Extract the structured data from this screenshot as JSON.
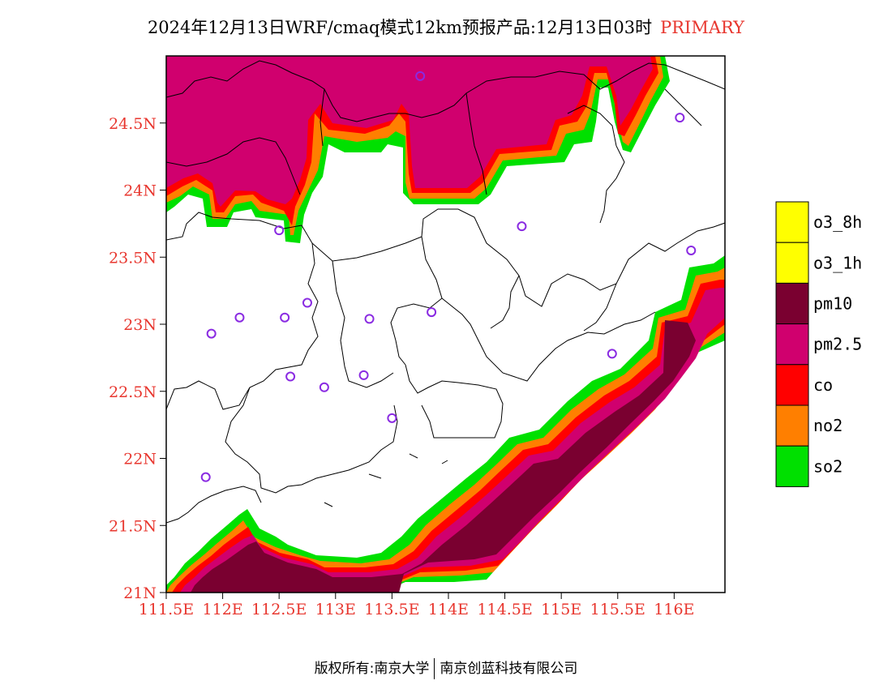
{
  "title": {
    "main": "2024年12月13日WRF/cmaq模式12km预报产品:12月13日03时",
    "tag": "PRIMARY"
  },
  "axes": {
    "lat_labels": [
      "24.5N",
      "24N",
      "23.5N",
      "23N",
      "22.5N",
      "22N",
      "21.5N",
      "21N"
    ],
    "lat_values": [
      24.5,
      24.0,
      23.5,
      23.0,
      22.5,
      22.0,
      21.5,
      21.0
    ],
    "lon_labels": [
      "111.5E",
      "112E",
      "112.5E",
      "113E",
      "113.5E",
      "114E",
      "114.5E",
      "115E",
      "115.5E",
      "116E"
    ],
    "lon_values": [
      111.5,
      112.0,
      112.5,
      113.0,
      113.5,
      114.0,
      114.5,
      115.0,
      115.5,
      116.0
    ]
  },
  "legend": {
    "items": [
      {
        "label": "o3_8h",
        "color": "#ffff00"
      },
      {
        "label": "o3_1h",
        "color": "#ffff00"
      },
      {
        "label": "pm10",
        "color": "#7a0030"
      },
      {
        "label": "pm2.5",
        "color": "#d0006e"
      },
      {
        "label": "co",
        "color": "#ff0000"
      },
      {
        "label": "no2",
        "color": "#ff7f00"
      },
      {
        "label": "so2",
        "color": "#00e000"
      }
    ]
  },
  "stations": [
    {
      "lon": 113.75,
      "lat": 24.85
    },
    {
      "lon": 116.05,
      "lat": 24.54
    },
    {
      "lon": 114.65,
      "lat": 23.73
    },
    {
      "lon": 112.5,
      "lat": 23.7
    },
    {
      "lon": 116.15,
      "lat": 23.55
    },
    {
      "lon": 112.75,
      "lat": 23.16
    },
    {
      "lon": 112.55,
      "lat": 23.05
    },
    {
      "lon": 112.15,
      "lat": 23.05
    },
    {
      "lon": 113.3,
      "lat": 23.04
    },
    {
      "lon": 113.85,
      "lat": 23.09
    },
    {
      "lon": 111.9,
      "lat": 22.93
    },
    {
      "lon": 115.45,
      "lat": 22.78
    },
    {
      "lon": 112.6,
      "lat": 22.61
    },
    {
      "lon": 113.25,
      "lat": 22.62
    },
    {
      "lon": 112.9,
      "lat": 22.53
    },
    {
      "lon": 113.5,
      "lat": 22.3
    },
    {
      "lon": 111.85,
      "lat": 21.86
    }
  ],
  "footer": {
    "left": "版权所有:南京大学",
    "right": "南京创蓝科技有限公司"
  }
}
